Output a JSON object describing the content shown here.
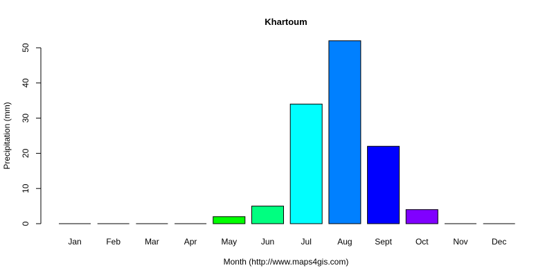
{
  "chart_data": {
    "type": "bar",
    "title": "Khartoum",
    "xlabel": "Month (http://www.maps4gis.com)",
    "ylabel": "Precipitation (mm)",
    "categories": [
      "Jan",
      "Feb",
      "Mar",
      "Apr",
      "May",
      "Jun",
      "Jul",
      "Aug",
      "Sept",
      "Oct",
      "Nov",
      "Dec"
    ],
    "values": [
      0,
      0,
      0,
      0,
      2,
      5,
      34,
      52,
      22,
      4,
      0,
      0
    ],
    "colors": [
      "#FF0000",
      "#FF8000",
      "#FFFF00",
      "#80FF00",
      "#00FF00",
      "#00FF80",
      "#00FFFF",
      "#0080FF",
      "#0000FF",
      "#8000FF",
      "#FF00FF",
      "#FF0080"
    ],
    "yticks": [
      0,
      10,
      20,
      30,
      40,
      50
    ],
    "ylim": [
      0,
      52
    ],
    "grid": false,
    "legend": null
  }
}
